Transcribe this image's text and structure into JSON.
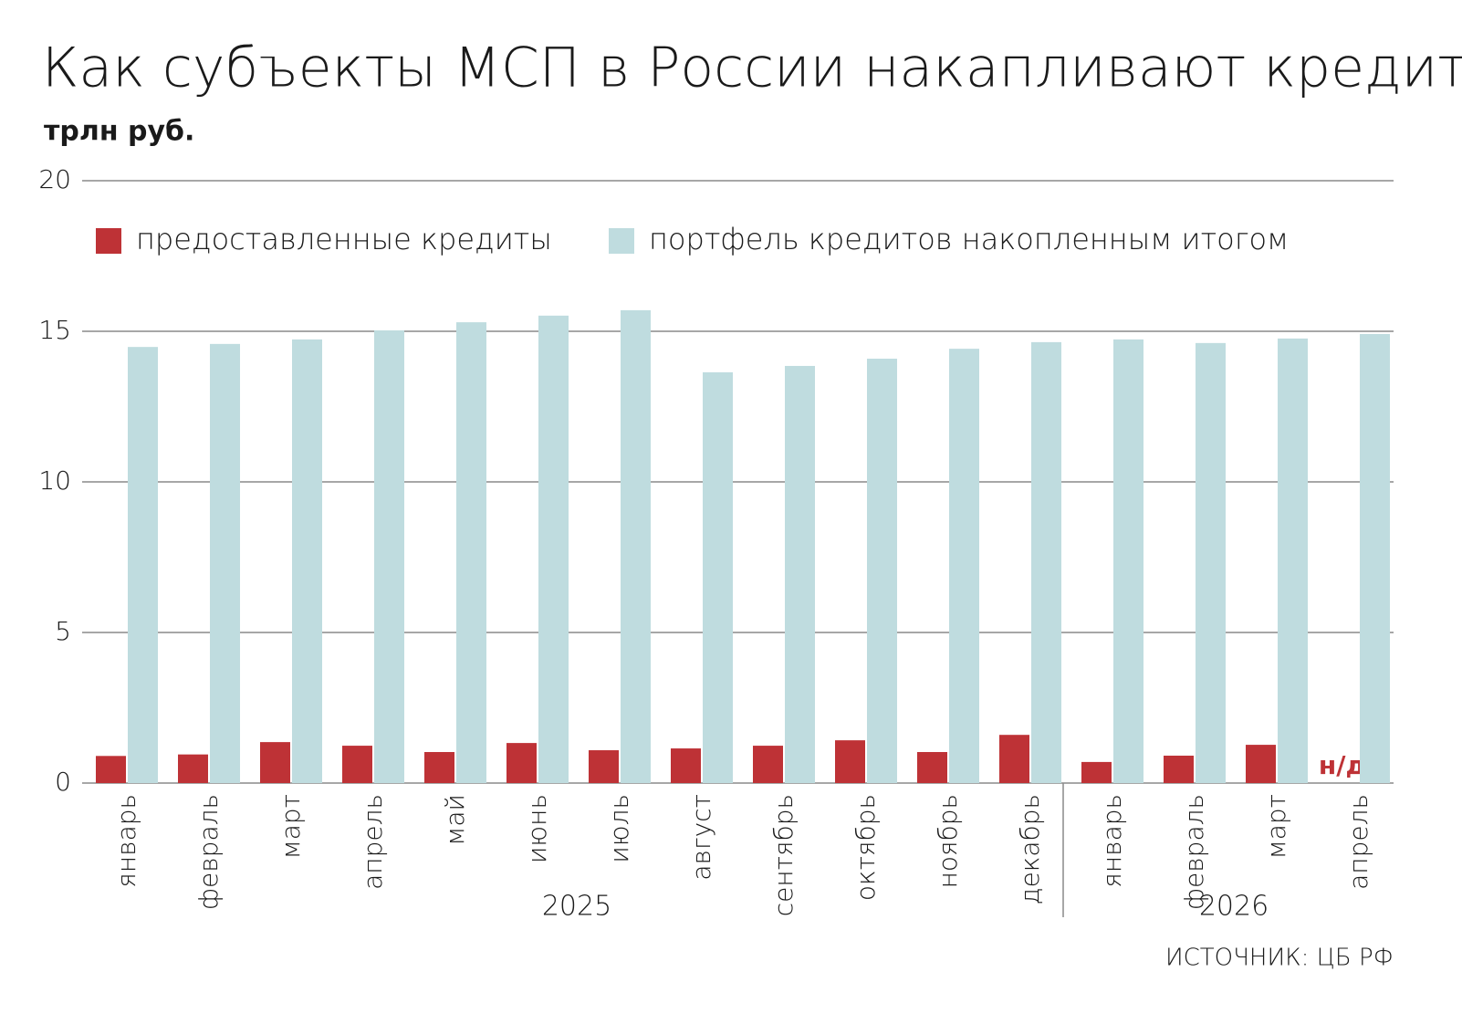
{
  "chart_data": {
    "type": "bar",
    "title": "Как субъекты МСП в России накапливают кредиты",
    "subtitle": "трлн руб.",
    "groups": [
      {
        "label": "2025",
        "categories": [
          "январь",
          "февраль",
          "март",
          "апрель",
          "май",
          "июнь",
          "июль",
          "август",
          "сентябрь",
          "октябрь",
          "ноябрь",
          "декабрь"
        ]
      },
      {
        "label": "2026",
        "categories": [
          "январь",
          "февраль",
          "март",
          "апрель"
        ]
      }
    ],
    "series": [
      {
        "name": "предоставленные кредиты",
        "color": "#be3236",
        "values": [
          0.9,
          0.95,
          1.36,
          1.24,
          1.03,
          1.33,
          1.09,
          1.15,
          1.24,
          1.42,
          1.03,
          1.6,
          0.7,
          0.91,
          1.27,
          null
        ]
      },
      {
        "name": "портфель кредитов накопленным итогом",
        "color": "#bfdcdf",
        "values": [
          14.48,
          14.58,
          14.73,
          15.03,
          15.3,
          15.52,
          15.7,
          13.64,
          13.85,
          14.09,
          14.42,
          14.64,
          14.73,
          14.61,
          14.76,
          14.91
        ]
      }
    ],
    "annotation": "н/д",
    "source": "ИСТОЧНИК: ЦБ РФ",
    "ylim": [
      0,
      20
    ],
    "yticks": [
      0,
      5,
      10,
      15,
      20
    ],
    "grid": true
  }
}
